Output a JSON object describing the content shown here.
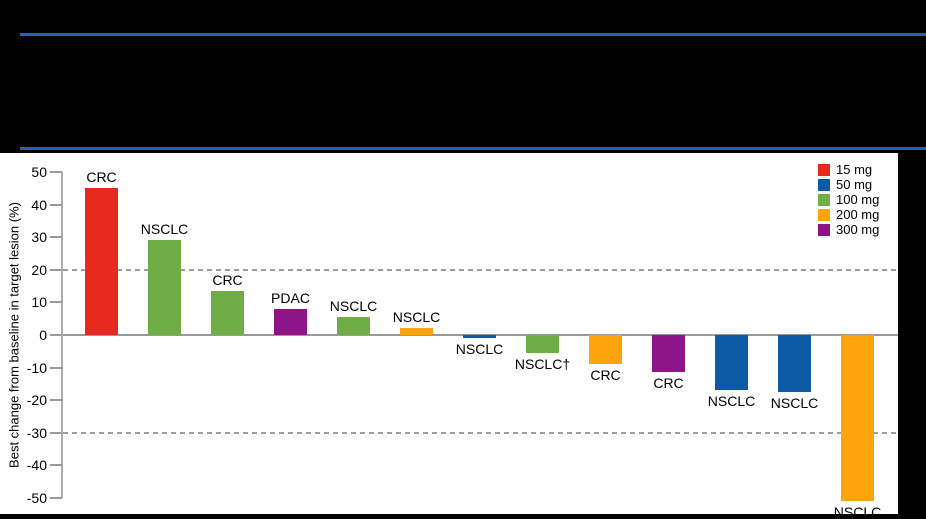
{
  "banner": {
    "background": "#000000",
    "rule_color_top": "#2a63ab",
    "rule_color_bottom": "#1767b7"
  },
  "chart_data": {
    "type": "bar",
    "variant": "waterfall",
    "title": "",
    "ylabel": "Best change from baseline in target lesion (%)",
    "ylim": [
      -50,
      50
    ],
    "yticks": [
      50,
      40,
      30,
      20,
      10,
      0,
      -10,
      -20,
      -30,
      -40,
      -50
    ],
    "reference_lines": [
      20,
      -30
    ],
    "grid": "dashed reference lines at +20 and -30 only",
    "legend_position": "top-right",
    "legend": [
      {
        "label": "15 mg",
        "color": "#e8291e"
      },
      {
        "label": "50 mg",
        "color": "#0c59a6"
      },
      {
        "label": "100 mg",
        "color": "#70ad47"
      },
      {
        "label": "200 mg",
        "color": "#ffa40d"
      },
      {
        "label": "300 mg",
        "color": "#8e1588"
      }
    ],
    "bars": [
      {
        "label": "CRC",
        "dose": "15 mg",
        "value": 45
      },
      {
        "label": "NSCLC",
        "dose": "100 mg",
        "value": 29
      },
      {
        "label": "CRC",
        "dose": "100 mg",
        "value": 13.5
      },
      {
        "label": "PDAC",
        "dose": "300 mg",
        "value": 8
      },
      {
        "label": "NSCLC",
        "dose": "100 mg",
        "value": 5.5
      },
      {
        "label": "NSCLC",
        "dose": "200 mg",
        "value": 2
      },
      {
        "label": "NSCLC",
        "dose": "50 mg",
        "value": -1
      },
      {
        "label": "NSCLC†",
        "dose": "100 mg",
        "value": -5.5
      },
      {
        "label": "CRC",
        "dose": "200 mg",
        "value": -9
      },
      {
        "label": "CRC",
        "dose": "300 mg",
        "value": -11.5
      },
      {
        "label": "NSCLC",
        "dose": "50 mg",
        "value": -17
      },
      {
        "label": "NSCLC",
        "dose": "50 mg",
        "value": -17.5
      },
      {
        "label": "NSCLC",
        "dose": "200 mg",
        "value": -51
      }
    ]
  }
}
